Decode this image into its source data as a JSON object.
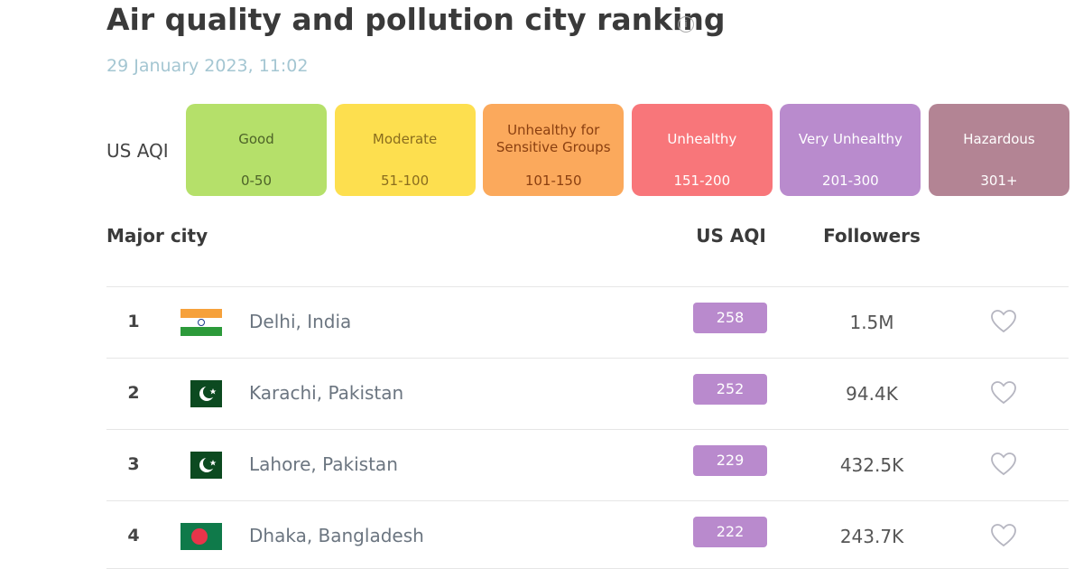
{
  "header": {
    "title": "Air quality and pollution city ranking",
    "date": "29 January 2023, 11:02"
  },
  "legend": {
    "label": "US AQI",
    "levels": [
      {
        "name": "Good",
        "range": "0-50",
        "color": "#b5e06a",
        "text_color": "#4d6328"
      },
      {
        "name": "Moderate",
        "range": "51-100",
        "color": "#fddf4f",
        "text_color": "#8a6d1e"
      },
      {
        "name": "Unhealthy for Sensitive Groups",
        "range": "101-150",
        "color": "#fba95c",
        "text_color": "#8a3f10"
      },
      {
        "name": "Unhealthy",
        "range": "151-200",
        "color": "#f8767a",
        "text_color": "#ffffff"
      },
      {
        "name": "Very Unhealthy",
        "range": "201-300",
        "color": "#b98bcd",
        "text_color": "#ffffff"
      },
      {
        "name": "Hazardous",
        "range": "301+",
        "color": "#b38494",
        "text_color": "#ffffff"
      }
    ]
  },
  "table": {
    "headers": [
      "Major city",
      "US AQI",
      "Followers"
    ],
    "rows": [
      {
        "rank": 1,
        "city": "Delhi, India",
        "aqi": 258,
        "followers": "1.5M"
      },
      {
        "rank": 2,
        "city": "Karachi, Pakistan",
        "aqi": 252,
        "followers": "94.4K"
      },
      {
        "rank": 3,
        "city": "Lahore, Pakistan",
        "aqi": 229,
        "followers": "432.5K"
      },
      {
        "rank": 4,
        "city": "Dhaka, Bangladesh",
        "aqi": 222,
        "followers": "243.7K"
      }
    ]
  }
}
